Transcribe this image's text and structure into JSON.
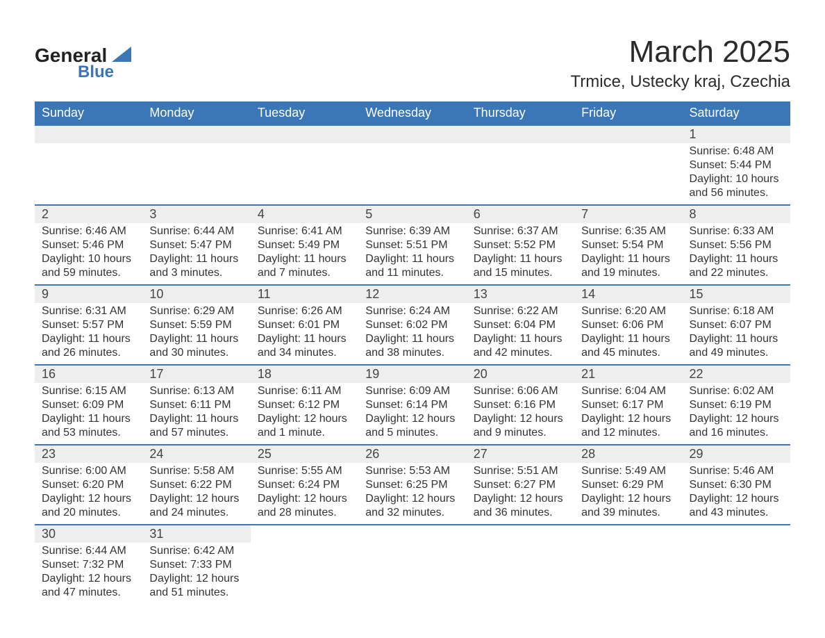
{
  "logo": {
    "general": "General",
    "blue": "Blue"
  },
  "title": "March 2025",
  "location": "Trmice, Ustecky kraj, Czechia",
  "colors": {
    "header_bg": "#3b76b6",
    "header_text": "#ffffff",
    "daybar_bg": "#eeeeee",
    "row_divider": "#3b76b6",
    "text": "#333333"
  },
  "typography": {
    "title_fontsize": 44,
    "location_fontsize": 24,
    "header_fontsize": 18,
    "cell_fontsize": 16
  },
  "days_of_week": [
    "Sunday",
    "Monday",
    "Tuesday",
    "Wednesday",
    "Thursday",
    "Friday",
    "Saturday"
  ],
  "weeks": [
    [
      {
        "blank": true
      },
      {
        "blank": true
      },
      {
        "blank": true
      },
      {
        "blank": true
      },
      {
        "blank": true
      },
      {
        "blank": true
      },
      {
        "day": "1",
        "sunrise": "Sunrise: 6:48 AM",
        "sunset": "Sunset: 5:44 PM",
        "dl1": "Daylight: 10 hours",
        "dl2": "and 56 minutes."
      }
    ],
    [
      {
        "day": "2",
        "sunrise": "Sunrise: 6:46 AM",
        "sunset": "Sunset: 5:46 PM",
        "dl1": "Daylight: 10 hours",
        "dl2": "and 59 minutes."
      },
      {
        "day": "3",
        "sunrise": "Sunrise: 6:44 AM",
        "sunset": "Sunset: 5:47 PM",
        "dl1": "Daylight: 11 hours",
        "dl2": "and 3 minutes."
      },
      {
        "day": "4",
        "sunrise": "Sunrise: 6:41 AM",
        "sunset": "Sunset: 5:49 PM",
        "dl1": "Daylight: 11 hours",
        "dl2": "and 7 minutes."
      },
      {
        "day": "5",
        "sunrise": "Sunrise: 6:39 AM",
        "sunset": "Sunset: 5:51 PM",
        "dl1": "Daylight: 11 hours",
        "dl2": "and 11 minutes."
      },
      {
        "day": "6",
        "sunrise": "Sunrise: 6:37 AM",
        "sunset": "Sunset: 5:52 PM",
        "dl1": "Daylight: 11 hours",
        "dl2": "and 15 minutes."
      },
      {
        "day": "7",
        "sunrise": "Sunrise: 6:35 AM",
        "sunset": "Sunset: 5:54 PM",
        "dl1": "Daylight: 11 hours",
        "dl2": "and 19 minutes."
      },
      {
        "day": "8",
        "sunrise": "Sunrise: 6:33 AM",
        "sunset": "Sunset: 5:56 PM",
        "dl1": "Daylight: 11 hours",
        "dl2": "and 22 minutes."
      }
    ],
    [
      {
        "day": "9",
        "sunrise": "Sunrise: 6:31 AM",
        "sunset": "Sunset: 5:57 PM",
        "dl1": "Daylight: 11 hours",
        "dl2": "and 26 minutes."
      },
      {
        "day": "10",
        "sunrise": "Sunrise: 6:29 AM",
        "sunset": "Sunset: 5:59 PM",
        "dl1": "Daylight: 11 hours",
        "dl2": "and 30 minutes."
      },
      {
        "day": "11",
        "sunrise": "Sunrise: 6:26 AM",
        "sunset": "Sunset: 6:01 PM",
        "dl1": "Daylight: 11 hours",
        "dl2": "and 34 minutes."
      },
      {
        "day": "12",
        "sunrise": "Sunrise: 6:24 AM",
        "sunset": "Sunset: 6:02 PM",
        "dl1": "Daylight: 11 hours",
        "dl2": "and 38 minutes."
      },
      {
        "day": "13",
        "sunrise": "Sunrise: 6:22 AM",
        "sunset": "Sunset: 6:04 PM",
        "dl1": "Daylight: 11 hours",
        "dl2": "and 42 minutes."
      },
      {
        "day": "14",
        "sunrise": "Sunrise: 6:20 AM",
        "sunset": "Sunset: 6:06 PM",
        "dl1": "Daylight: 11 hours",
        "dl2": "and 45 minutes."
      },
      {
        "day": "15",
        "sunrise": "Sunrise: 6:18 AM",
        "sunset": "Sunset: 6:07 PM",
        "dl1": "Daylight: 11 hours",
        "dl2": "and 49 minutes."
      }
    ],
    [
      {
        "day": "16",
        "sunrise": "Sunrise: 6:15 AM",
        "sunset": "Sunset: 6:09 PM",
        "dl1": "Daylight: 11 hours",
        "dl2": "and 53 minutes."
      },
      {
        "day": "17",
        "sunrise": "Sunrise: 6:13 AM",
        "sunset": "Sunset: 6:11 PM",
        "dl1": "Daylight: 11 hours",
        "dl2": "and 57 minutes."
      },
      {
        "day": "18",
        "sunrise": "Sunrise: 6:11 AM",
        "sunset": "Sunset: 6:12 PM",
        "dl1": "Daylight: 12 hours",
        "dl2": "and 1 minute."
      },
      {
        "day": "19",
        "sunrise": "Sunrise: 6:09 AM",
        "sunset": "Sunset: 6:14 PM",
        "dl1": "Daylight: 12 hours",
        "dl2": "and 5 minutes."
      },
      {
        "day": "20",
        "sunrise": "Sunrise: 6:06 AM",
        "sunset": "Sunset: 6:16 PM",
        "dl1": "Daylight: 12 hours",
        "dl2": "and 9 minutes."
      },
      {
        "day": "21",
        "sunrise": "Sunrise: 6:04 AM",
        "sunset": "Sunset: 6:17 PM",
        "dl1": "Daylight: 12 hours",
        "dl2": "and 12 minutes."
      },
      {
        "day": "22",
        "sunrise": "Sunrise: 6:02 AM",
        "sunset": "Sunset: 6:19 PM",
        "dl1": "Daylight: 12 hours",
        "dl2": "and 16 minutes."
      }
    ],
    [
      {
        "day": "23",
        "sunrise": "Sunrise: 6:00 AM",
        "sunset": "Sunset: 6:20 PM",
        "dl1": "Daylight: 12 hours",
        "dl2": "and 20 minutes."
      },
      {
        "day": "24",
        "sunrise": "Sunrise: 5:58 AM",
        "sunset": "Sunset: 6:22 PM",
        "dl1": "Daylight: 12 hours",
        "dl2": "and 24 minutes."
      },
      {
        "day": "25",
        "sunrise": "Sunrise: 5:55 AM",
        "sunset": "Sunset: 6:24 PM",
        "dl1": "Daylight: 12 hours",
        "dl2": "and 28 minutes."
      },
      {
        "day": "26",
        "sunrise": "Sunrise: 5:53 AM",
        "sunset": "Sunset: 6:25 PM",
        "dl1": "Daylight: 12 hours",
        "dl2": "and 32 minutes."
      },
      {
        "day": "27",
        "sunrise": "Sunrise: 5:51 AM",
        "sunset": "Sunset: 6:27 PM",
        "dl1": "Daylight: 12 hours",
        "dl2": "and 36 minutes."
      },
      {
        "day": "28",
        "sunrise": "Sunrise: 5:49 AM",
        "sunset": "Sunset: 6:29 PM",
        "dl1": "Daylight: 12 hours",
        "dl2": "and 39 minutes."
      },
      {
        "day": "29",
        "sunrise": "Sunrise: 5:46 AM",
        "sunset": "Sunset: 6:30 PM",
        "dl1": "Daylight: 12 hours",
        "dl2": "and 43 minutes."
      }
    ],
    [
      {
        "day": "30",
        "sunrise": "Sunrise: 6:44 AM",
        "sunset": "Sunset: 7:32 PM",
        "dl1": "Daylight: 12 hours",
        "dl2": "and 47 minutes."
      },
      {
        "day": "31",
        "sunrise": "Sunrise: 6:42 AM",
        "sunset": "Sunset: 7:33 PM",
        "dl1": "Daylight: 12 hours",
        "dl2": "and 51 minutes."
      },
      {
        "blank": true
      },
      {
        "blank": true
      },
      {
        "blank": true
      },
      {
        "blank": true
      },
      {
        "blank": true
      }
    ]
  ]
}
